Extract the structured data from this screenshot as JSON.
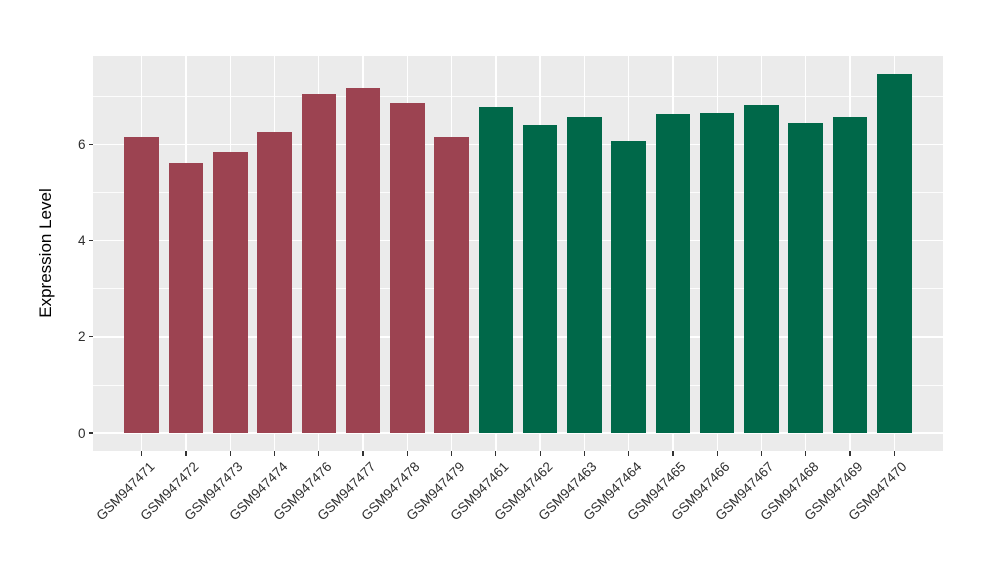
{
  "chart_data": {
    "type": "bar",
    "title": "",
    "xlabel": "",
    "ylabel": "Expression Level",
    "categories": [
      "GSM947471",
      "GSM947472",
      "GSM947473",
      "GSM947474",
      "GSM947476",
      "GSM947477",
      "GSM947478",
      "GSM947479",
      "GSM947461",
      "GSM947462",
      "GSM947463",
      "GSM947464",
      "GSM947465",
      "GSM947466",
      "GSM947467",
      "GSM947468",
      "GSM947469",
      "GSM947470"
    ],
    "values": [
      6.15,
      5.61,
      5.84,
      6.26,
      7.05,
      7.17,
      6.87,
      6.16,
      6.78,
      6.4,
      6.57,
      6.08,
      6.63,
      6.66,
      6.82,
      6.44,
      6.57,
      7.46
    ],
    "bar_group_index": [
      0,
      0,
      0,
      0,
      0,
      0,
      0,
      0,
      1,
      1,
      1,
      1,
      1,
      1,
      1,
      1,
      1,
      1
    ],
    "group_colors": [
      "#9C4351",
      "#006849"
    ],
    "group_names": [
      "maroon-group",
      "green-group"
    ],
    "y_ticks": [
      0,
      2,
      4,
      6
    ],
    "y_tick_labels": [
      "0",
      "2",
      "4",
      "6"
    ],
    "y_minor_ticks": [
      1,
      3,
      5,
      7
    ],
    "ylim": [
      -0.374,
      7.84
    ],
    "grid": true,
    "legend_position": "none",
    "panel_background": "#EBEBEB",
    "gridline_color": "#FFFFFF",
    "x_label_angle_deg": 45
  }
}
